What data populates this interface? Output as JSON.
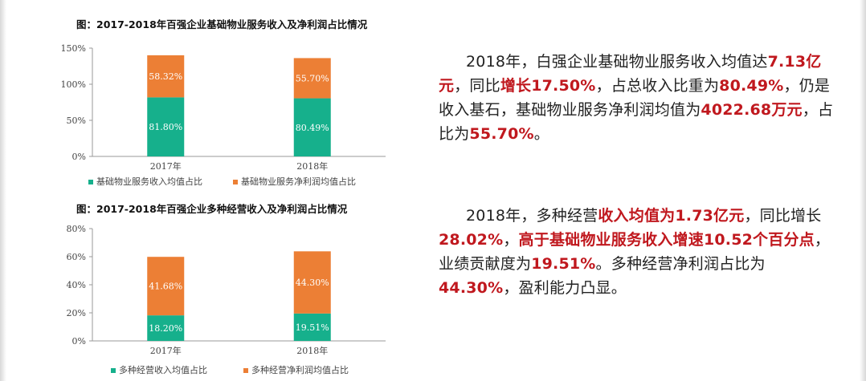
{
  "chart_data": [
    {
      "type": "bar",
      "stacked": true,
      "title": "图：2017-2018年百强企业基础物业服务收入及净利润占比情况",
      "categories": [
        "2017年",
        "2018年"
      ],
      "series": [
        {
          "name": "基础物业服务收入均值占比",
          "values": [
            81.8,
            80.49
          ],
          "labels": [
            "81.80%",
            "80.49%"
          ],
          "color": "#16b08c"
        },
        {
          "name": "基础物业服务净利润均值占比",
          "values": [
            58.32,
            55.7
          ],
          "labels": [
            "58.32%",
            "55.70%"
          ],
          "color": "#ec7f35"
        }
      ],
      "ylim": [
        0,
        150
      ],
      "yticks": [
        0,
        50,
        100,
        150
      ],
      "ytick_labels": [
        "0%",
        "50%",
        "100%",
        "150%"
      ],
      "legend": "bottom",
      "grid": false
    },
    {
      "type": "bar",
      "stacked": true,
      "title": "图：2017-2018年百强企业多种经营收入及净利润占比情况",
      "categories": [
        "2017年",
        "2018年"
      ],
      "series": [
        {
          "name": "多种经营收入均值占比",
          "values": [
            18.2,
            19.51
          ],
          "labels": [
            "18.20%",
            "19.51%"
          ],
          "color": "#16b08c"
        },
        {
          "name": "多种经营净利润均值占比",
          "values": [
            41.68,
            44.3
          ],
          "labels": [
            "41.68%",
            "44.30%"
          ],
          "color": "#ec7f35"
        }
      ],
      "ylim": [
        0,
        80
      ],
      "yticks": [
        0,
        20,
        40,
        60,
        80
      ],
      "ytick_labels": [
        "0%",
        "20%",
        "40%",
        "60%",
        "80%"
      ],
      "legend": "bottom",
      "grid": false
    }
  ],
  "text": {
    "para1": [
      {
        "t": "2018年，白强企业基础物业服务收入均值达"
      },
      {
        "t": "7.13亿元",
        "hl": true
      },
      {
        "t": "，同比"
      },
      {
        "t": "增长17.50%",
        "hl": true
      },
      {
        "t": "，占总收入比重为"
      },
      {
        "t": "80.49%",
        "hl": true
      },
      {
        "t": "，仍是收入基石，基础物业服务净利润均值为"
      },
      {
        "t": "4022.68万元",
        "hl": true
      },
      {
        "t": "，占比为"
      },
      {
        "t": "55.70%",
        "hl": true
      },
      {
        "t": "。"
      }
    ],
    "para2": [
      {
        "t": "2018年，多种经营"
      },
      {
        "t": "收入均值为1.73亿元",
        "hl": true
      },
      {
        "t": "，同比增长"
      },
      {
        "t": "28.02%",
        "hl": true
      },
      {
        "t": "，"
      },
      {
        "t": "高于基础物业服务收入增速10.52个百分点",
        "hl": true
      },
      {
        "t": "，业绩贡献度为"
      },
      {
        "t": "19.51%",
        "hl": true
      },
      {
        "t": "。多种经营净利润占比为"
      },
      {
        "t": "44.30%",
        "hl": true
      },
      {
        "t": "，盈利能力凸显。"
      }
    ]
  },
  "colors": {
    "accent_red": "#c0181e",
    "teal": "#16b08c",
    "orange": "#ec7f35"
  }
}
